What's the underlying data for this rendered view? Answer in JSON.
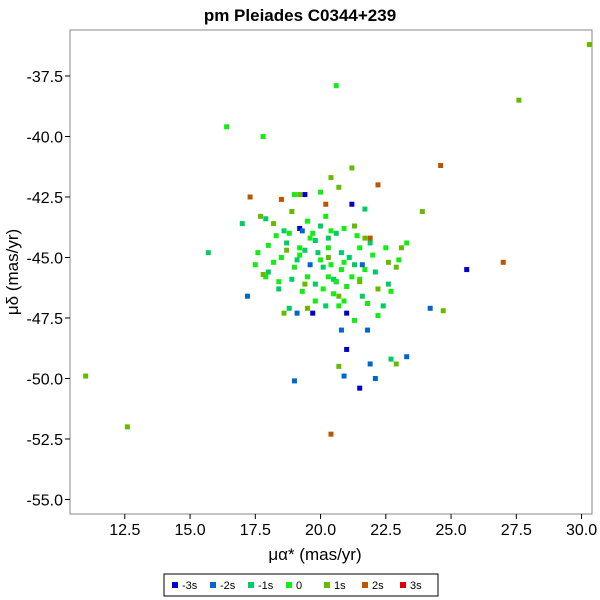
{
  "chart_data": {
    "type": "scatter",
    "title": "pm Pleiades  C0344+239",
    "xlabel": "μα* (mas/yr)",
    "ylabel": "μδ (mas/yr)",
    "xlim": [
      10.4,
      30.4
    ],
    "ylim": [
      -55.6,
      -35.6
    ],
    "xticks": [
      12.5,
      15.0,
      17.5,
      20.0,
      22.5,
      25.0,
      27.5,
      30.0
    ],
    "xtick_labels": [
      "12.5",
      "15.0",
      "17.5",
      "20.0",
      "22.5",
      "25.0",
      "27.5",
      "30.0"
    ],
    "yticks": [
      -37.5,
      -40.0,
      -42.5,
      -45.0,
      -47.5,
      -50.0,
      -52.5,
      -55.0
    ],
    "ytick_labels": [
      "-37.5",
      "-40.0",
      "-42.5",
      "-45.0",
      "-47.5",
      "-50.0",
      "-52.5",
      "-55.0"
    ],
    "grid": false,
    "legend_position": "bottom",
    "series": [
      {
        "name": "-3s",
        "color": "#0000cc",
        "points": [
          [
            19.2,
            -43.8
          ],
          [
            21.2,
            -42.8
          ],
          [
            19.7,
            -47.3
          ],
          [
            21.0,
            -47.3
          ],
          [
            21.0,
            -48.8
          ],
          [
            21.5,
            -50.4
          ],
          [
            25.6,
            -45.5
          ],
          [
            19.4,
            -42.4
          ]
        ]
      },
      {
        "name": "-2s",
        "color": "#0066cc",
        "points": [
          [
            17.2,
            -46.6
          ],
          [
            19.0,
            -50.1
          ],
          [
            20.9,
            -49.9
          ],
          [
            22.1,
            -50.0
          ],
          [
            21.9,
            -49.4
          ],
          [
            23.3,
            -49.1
          ],
          [
            24.2,
            -47.1
          ],
          [
            21.8,
            -48.0
          ],
          [
            20.8,
            -48.0
          ],
          [
            19.1,
            -47.3
          ],
          [
            20.6,
            -46.0
          ],
          [
            21.6,
            -45.3
          ],
          [
            19.6,
            -45.3
          ],
          [
            19.3,
            -43.9
          ]
        ]
      },
      {
        "name": "-1s",
        "color": "#00cc66",
        "points": [
          [
            15.7,
            -44.8
          ],
          [
            17.0,
            -43.6
          ],
          [
            17.9,
            -43.4
          ],
          [
            18.6,
            -43.9
          ],
          [
            19.4,
            -44.7
          ],
          [
            19.8,
            -44.3
          ],
          [
            20.3,
            -44.2
          ],
          [
            20.8,
            -44.8
          ],
          [
            21.3,
            -45.3
          ],
          [
            22.1,
            -45.6
          ],
          [
            22.6,
            -46.1
          ],
          [
            21.6,
            -46.6
          ],
          [
            20.2,
            -47.0
          ],
          [
            18.4,
            -46.3
          ],
          [
            18.0,
            -45.6
          ],
          [
            18.9,
            -45.9
          ],
          [
            19.8,
            -46.1
          ],
          [
            20.5,
            -45.9
          ],
          [
            21.1,
            -45.0
          ],
          [
            19.9,
            -44.8
          ],
          [
            19.1,
            -45.1
          ],
          [
            18.7,
            -44.4
          ],
          [
            20.1,
            -45.4
          ],
          [
            20.6,
            -44.0
          ],
          [
            21.9,
            -44.4
          ],
          [
            22.4,
            -47.0
          ],
          [
            22.7,
            -49.2
          ],
          [
            20.0,
            -43.7
          ],
          [
            21.7,
            -43.0
          ],
          [
            18.8,
            -47.1
          ]
        ]
      },
      {
        "name": "0",
        "color": "#11ee11",
        "points": [
          [
            16.4,
            -39.6
          ],
          [
            17.8,
            -40.0
          ],
          [
            20.6,
            -37.9
          ],
          [
            18.3,
            -44.1
          ],
          [
            18.8,
            -44.0
          ],
          [
            19.2,
            -44.6
          ],
          [
            19.6,
            -44.2
          ],
          [
            20.0,
            -45.1
          ],
          [
            20.4,
            -45.3
          ],
          [
            20.8,
            -45.5
          ],
          [
            21.2,
            -45.8
          ],
          [
            19.0,
            -45.4
          ],
          [
            18.5,
            -45.0
          ],
          [
            18.0,
            -44.5
          ],
          [
            17.5,
            -45.3
          ],
          [
            17.9,
            -45.8
          ],
          [
            18.4,
            -46.0
          ],
          [
            19.3,
            -46.4
          ],
          [
            19.8,
            -46.8
          ],
          [
            20.5,
            -46.5
          ],
          [
            21.0,
            -46.2
          ],
          [
            21.5,
            -45.9
          ],
          [
            22.0,
            -44.9
          ],
          [
            22.5,
            -44.6
          ],
          [
            21.4,
            -44.1
          ],
          [
            20.2,
            -43.3
          ],
          [
            19.5,
            -43.5
          ],
          [
            20.0,
            -42.3
          ],
          [
            20.3,
            -44.6
          ],
          [
            19.5,
            -45.8
          ],
          [
            20.1,
            -46.3
          ],
          [
            20.7,
            -47.0
          ],
          [
            21.8,
            -46.9
          ],
          [
            22.7,
            -46.4
          ],
          [
            23.0,
            -45.1
          ],
          [
            19.0,
            -42.4
          ],
          [
            20.9,
            -43.8
          ],
          [
            21.5,
            -44.6
          ],
          [
            20.9,
            -46.8
          ],
          [
            23.3,
            -44.4
          ],
          [
            19.7,
            -44.0
          ],
          [
            17.6,
            -44.8
          ],
          [
            18.2,
            -45.2
          ],
          [
            21.3,
            -47.6
          ],
          [
            22.2,
            -47.4
          ],
          [
            20.9,
            -45.2
          ],
          [
            20.3,
            -45.8
          ],
          [
            19.2,
            -44.9
          ],
          [
            20.4,
            -43.9
          ],
          [
            21.7,
            -45.5
          ],
          [
            20.6,
            -46.0
          ]
        ]
      },
      {
        "name": "1s",
        "color": "#66bb00",
        "points": [
          [
            27.6,
            -38.5
          ],
          [
            30.3,
            -36.2
          ],
          [
            11.0,
            -49.9
          ],
          [
            12.6,
            -52.0
          ],
          [
            23.9,
            -43.1
          ],
          [
            24.7,
            -47.2
          ],
          [
            22.9,
            -49.4
          ],
          [
            20.7,
            -49.5
          ],
          [
            22.9,
            -45.4
          ],
          [
            23.1,
            -44.6
          ],
          [
            21.3,
            -43.7
          ],
          [
            20.7,
            -42.1
          ],
          [
            20.4,
            -41.7
          ],
          [
            21.2,
            -41.3
          ],
          [
            19.2,
            -42.4
          ],
          [
            18.9,
            -43.1
          ],
          [
            18.2,
            -43.6
          ],
          [
            17.8,
            -45.7
          ],
          [
            18.7,
            -44.7
          ],
          [
            19.4,
            -46.1
          ],
          [
            21.7,
            -44.2
          ],
          [
            22.2,
            -46.3
          ],
          [
            19.5,
            -47.1
          ],
          [
            20.7,
            -46.6
          ],
          [
            21.5,
            -46.0
          ],
          [
            22.6,
            -45.2
          ],
          [
            17.7,
            -43.3
          ],
          [
            18.6,
            -47.3
          ],
          [
            20.3,
            -45.0
          ]
        ]
      },
      {
        "name": "2s",
        "color": "#bb5500",
        "points": [
          [
            24.6,
            -41.2
          ],
          [
            22.2,
            -42.0
          ],
          [
            17.3,
            -42.5
          ],
          [
            18.5,
            -42.6
          ],
          [
            20.2,
            -42.8
          ],
          [
            21.9,
            -44.2
          ],
          [
            27.0,
            -45.2
          ],
          [
            20.4,
            -52.3
          ]
        ]
      },
      {
        "name": "3s",
        "color": "#dd0000",
        "points": []
      }
    ]
  }
}
